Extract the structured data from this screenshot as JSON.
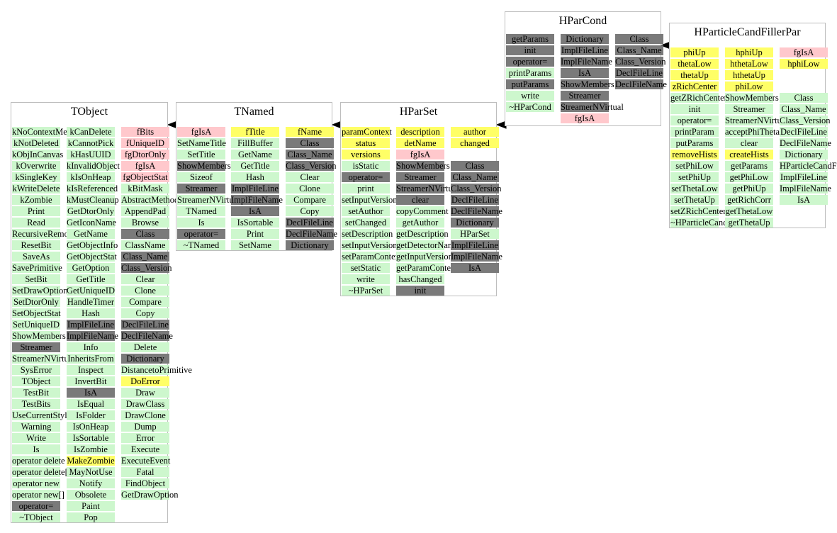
{
  "colors": {
    "method": "#cdf7cd",
    "inherited": "#7a7a7a",
    "data_member": "#ffff66",
    "static_member": "#ffc8cc",
    "border": "#bdbdbd"
  },
  "classes": {
    "TObject": {
      "title": "TObject",
      "columns": [
        [
          [
            "kNoContextMenu",
            "g"
          ],
          [
            "kNotDeleted",
            "g"
          ],
          [
            "kObjInCanvas",
            "g"
          ],
          [
            "kOverwrite",
            "g"
          ],
          [
            "kSingleKey",
            "g"
          ],
          [
            "kWriteDelete",
            "g"
          ],
          [
            "kZombie",
            "g"
          ],
          [
            "Print",
            "g"
          ],
          [
            "Read",
            "g"
          ],
          [
            "RecursiveRemove",
            "g"
          ],
          [
            "ResetBit",
            "g"
          ],
          [
            "SaveAs",
            "g"
          ],
          [
            "SavePrimitive",
            "g"
          ],
          [
            "SetBit",
            "g"
          ],
          [
            "SetDrawOption",
            "g"
          ],
          [
            "SetDtorOnly",
            "g"
          ],
          [
            "SetObjectStat",
            "g"
          ],
          [
            "SetUniqueID",
            "g"
          ],
          [
            "ShowMembers",
            "g"
          ],
          [
            "Streamer",
            "d"
          ],
          [
            "StreamerNVirtual",
            "g"
          ],
          [
            "SysError",
            "g"
          ],
          [
            "TObject",
            "g"
          ],
          [
            "TestBit",
            "g"
          ],
          [
            "TestBits",
            "g"
          ],
          [
            "UseCurrentStyle",
            "g"
          ],
          [
            "Warning",
            "g"
          ],
          [
            "Write",
            "g"
          ],
          [
            "Is",
            "g"
          ],
          [
            "operator delete",
            "g"
          ],
          [
            "operator delete[]",
            "g"
          ],
          [
            "operator new",
            "g"
          ],
          [
            "operator new[]",
            "g"
          ],
          [
            "operator=",
            "d"
          ],
          [
            "~TObject",
            "g"
          ]
        ],
        [
          [
            "kCanDelete",
            "g"
          ],
          [
            "kCannotPick",
            "g"
          ],
          [
            "kHasUUID",
            "g"
          ],
          [
            "kInvalidObject",
            "g"
          ],
          [
            "kIsOnHeap",
            "g"
          ],
          [
            "kIsReferenced",
            "g"
          ],
          [
            "kMustCleanup",
            "g"
          ],
          [
            "GetDtorOnly",
            "g"
          ],
          [
            "GetIconName",
            "g"
          ],
          [
            "GetName",
            "g"
          ],
          [
            "GetObjectInfo",
            "g"
          ],
          [
            "GetObjectStat",
            "g"
          ],
          [
            "GetOption",
            "g"
          ],
          [
            "GetTitle",
            "g"
          ],
          [
            "GetUniqueID",
            "g"
          ],
          [
            "HandleTimer",
            "g"
          ],
          [
            "Hash",
            "g"
          ],
          [
            "ImplFileLine",
            "d"
          ],
          [
            "ImplFileName",
            "d"
          ],
          [
            "Info",
            "g"
          ],
          [
            "InheritsFrom",
            "g"
          ],
          [
            "Inspect",
            "g"
          ],
          [
            "InvertBit",
            "g"
          ],
          [
            "IsA",
            "d"
          ],
          [
            "IsEqual",
            "g"
          ],
          [
            "IsFolder",
            "g"
          ],
          [
            "IsOnHeap",
            "g"
          ],
          [
            "IsSortable",
            "g"
          ],
          [
            "IsZombie",
            "g"
          ],
          [
            "MakeZombie",
            "y"
          ],
          [
            "MayNotUse",
            "g"
          ],
          [
            "Notify",
            "g"
          ],
          [
            "Obsolete",
            "g"
          ],
          [
            "Paint",
            "g"
          ],
          [
            "Pop",
            "g"
          ]
        ],
        [
          [
            "fBits",
            "p"
          ],
          [
            "fUniqueID",
            "p"
          ],
          [
            "fgDtorOnly",
            "p"
          ],
          [
            "fgIsA",
            "p"
          ],
          [
            "fgObjectStat",
            "p"
          ],
          [
            "kBitMask",
            "g"
          ],
          [
            "AbstractMethod",
            "g"
          ],
          [
            "AppendPad",
            "g"
          ],
          [
            "Browse",
            "g"
          ],
          [
            "Class",
            "d"
          ],
          [
            "ClassName",
            "g"
          ],
          [
            "Class_Name",
            "d"
          ],
          [
            "Class_Version",
            "d"
          ],
          [
            "Clear",
            "g"
          ],
          [
            "Clone",
            "g"
          ],
          [
            "Compare",
            "g"
          ],
          [
            "Copy",
            "g"
          ],
          [
            "DeclFileLine",
            "d"
          ],
          [
            "DeclFileName",
            "d"
          ],
          [
            "Delete",
            "g"
          ],
          [
            "Dictionary",
            "d"
          ],
          [
            "DistancetoPrimitive",
            "g"
          ],
          [
            "DoError",
            "y"
          ],
          [
            "Draw",
            "g"
          ],
          [
            "DrawClass",
            "g"
          ],
          [
            "DrawClone",
            "g"
          ],
          [
            "Dump",
            "g"
          ],
          [
            "Error",
            "g"
          ],
          [
            "Execute",
            "g"
          ],
          [
            "ExecuteEvent",
            "g"
          ],
          [
            "Fatal",
            "g"
          ],
          [
            "FindObject",
            "g"
          ],
          [
            "GetDrawOption",
            "g"
          ]
        ]
      ]
    },
    "TNamed": {
      "title": "TNamed",
      "columns": [
        [
          [
            "fgIsA",
            "p"
          ],
          [
            "SetNameTitle",
            "g"
          ],
          [
            "SetTitle",
            "g"
          ],
          [
            "ShowMembers",
            "d"
          ],
          [
            "Sizeof",
            "g"
          ],
          [
            "Streamer",
            "d"
          ],
          [
            "StreamerNVirtual",
            "g"
          ],
          [
            "TNamed",
            "g"
          ],
          [
            "Is",
            "g"
          ],
          [
            "operator=",
            "d"
          ],
          [
            "~TNamed",
            "g"
          ]
        ],
        [
          [
            "fTitle",
            "y"
          ],
          [
            "FillBuffer",
            "g"
          ],
          [
            "GetName",
            "g"
          ],
          [
            "GetTitle",
            "g"
          ],
          [
            "Hash",
            "g"
          ],
          [
            "ImplFileLine",
            "d"
          ],
          [
            "ImplFileName",
            "d"
          ],
          [
            "IsA",
            "d"
          ],
          [
            "IsSortable",
            "g"
          ],
          [
            "Print",
            "g"
          ],
          [
            "SetName",
            "g"
          ]
        ],
        [
          [
            "fName",
            "y"
          ],
          [
            "Class",
            "d"
          ],
          [
            "Class_Name",
            "d"
          ],
          [
            "Class_Version",
            "d"
          ],
          [
            "Clear",
            "g"
          ],
          [
            "Clone",
            "g"
          ],
          [
            "Compare",
            "g"
          ],
          [
            "Copy",
            "g"
          ],
          [
            "DeclFileLine",
            "d"
          ],
          [
            "DeclFileName",
            "d"
          ],
          [
            "Dictionary",
            "d"
          ]
        ]
      ]
    },
    "HParSet": {
      "title": "HParSet",
      "columns": [
        [
          [
            "paramContext",
            "y"
          ],
          [
            "status",
            "y"
          ],
          [
            "versions",
            "y"
          ],
          [
            "isStatic",
            "g"
          ],
          [
            "operator=",
            "d"
          ],
          [
            "print",
            "g"
          ],
          [
            "setInputVersions",
            "g"
          ],
          [
            "setAuthor",
            "g"
          ],
          [
            "setChanged",
            "g"
          ],
          [
            "setDescription",
            "g"
          ],
          [
            "setInputVersion",
            "g"
          ],
          [
            "setParamContext",
            "g"
          ],
          [
            "setStatic",
            "g"
          ],
          [
            "write",
            "g"
          ],
          [
            "~HParSet",
            "g"
          ]
        ],
        [
          [
            "description",
            "y"
          ],
          [
            "detName",
            "y"
          ],
          [
            "fgIsA",
            "p"
          ],
          [
            "ShowMembers",
            "d"
          ],
          [
            "Streamer",
            "d"
          ],
          [
            "StreamerNVirtual",
            "d"
          ],
          [
            "clear",
            "d"
          ],
          [
            "copyComment",
            "g"
          ],
          [
            "getAuthor",
            "g"
          ],
          [
            "getDescription",
            "g"
          ],
          [
            "getDetectorName",
            "g"
          ],
          [
            "getInputVersion",
            "g"
          ],
          [
            "getParamContext",
            "g"
          ],
          [
            "hasChanged",
            "g"
          ],
          [
            "init",
            "d"
          ]
        ],
        [
          [
            "author",
            "y"
          ],
          [
            "changed",
            "y"
          ],
          [
            "",
            ""
          ],
          [
            "Class",
            "d"
          ],
          [
            "Class_Name",
            "d"
          ],
          [
            "Class_Version",
            "d"
          ],
          [
            "DeclFileLine",
            "d"
          ],
          [
            "DeclFileName",
            "d"
          ],
          [
            "Dictionary",
            "d"
          ],
          [
            "HParSet",
            "g"
          ],
          [
            "ImplFileLine",
            "d"
          ],
          [
            "ImplFileName",
            "d"
          ],
          [
            "IsA",
            "d"
          ]
        ]
      ]
    },
    "HParCond": {
      "title": "HParCond",
      "columns": [
        [
          [
            "getParams",
            "d"
          ],
          [
            "init",
            "d"
          ],
          [
            "operator=",
            "d"
          ],
          [
            "printParams",
            "g"
          ],
          [
            "putParams",
            "d"
          ],
          [
            "write",
            "g"
          ],
          [
            "~HParCond",
            "g"
          ]
        ],
        [
          [
            "Dictionary",
            "d"
          ],
          [
            "ImplFileLine",
            "d"
          ],
          [
            "ImplFileName",
            "d"
          ],
          [
            "IsA",
            "d"
          ],
          [
            "ShowMembers",
            "d"
          ],
          [
            "Streamer",
            "d"
          ],
          [
            "StreamerNVirtual",
            "d"
          ],
          [
            "fgIsA",
            "p"
          ]
        ],
        [
          [
            "Class",
            "d"
          ],
          [
            "Class_Name",
            "d"
          ],
          [
            "Class_Version",
            "d"
          ],
          [
            "DeclFileLine",
            "d"
          ],
          [
            "DeclFileName",
            "d"
          ]
        ]
      ]
    },
    "HParticleCandFillerPar": {
      "title": "HParticleCandFillerPar",
      "columns": [
        [
          [
            "phiUp",
            "y"
          ],
          [
            "thetaLow",
            "y"
          ],
          [
            "thetaUp",
            "y"
          ],
          [
            "zRichCenter",
            "y"
          ],
          [
            "getZRichCenter",
            "g"
          ],
          [
            "init",
            "g"
          ],
          [
            "operator=",
            "g"
          ],
          [
            "printParam",
            "g"
          ],
          [
            "putParams",
            "g"
          ],
          [
            "removeHists",
            "y"
          ],
          [
            "setPhiLow",
            "g"
          ],
          [
            "setPhiUp",
            "g"
          ],
          [
            "setThetaLow",
            "g"
          ],
          [
            "setThetaUp",
            "g"
          ],
          [
            "setZRichCenter",
            "g"
          ],
          [
            "~HParticleCandFillerPar",
            "g"
          ]
        ],
        [
          [
            "hphiUp",
            "y"
          ],
          [
            "hthetaLow",
            "y"
          ],
          [
            "hthetaUp",
            "y"
          ],
          [
            "phiLow",
            "y"
          ],
          [
            "ShowMembers",
            "g"
          ],
          [
            "Streamer",
            "g"
          ],
          [
            "StreamerNVirtual",
            "g"
          ],
          [
            "acceptPhiTheta",
            "g"
          ],
          [
            "clear",
            "g"
          ],
          [
            "createHists",
            "y"
          ],
          [
            "getParams",
            "g"
          ],
          [
            "getPhiLow",
            "g"
          ],
          [
            "getPhiUp",
            "g"
          ],
          [
            "getRichCorr",
            "g"
          ],
          [
            "getThetaLow",
            "g"
          ],
          [
            "getThetaUp",
            "g"
          ]
        ],
        [
          [
            "fgIsA",
            "p"
          ],
          [
            "hphiLow",
            "y"
          ],
          [
            "",
            ""
          ],
          [
            "",
            ""
          ],
          [
            "Class",
            "g"
          ],
          [
            "Class_Name",
            "g"
          ],
          [
            "Class_Version",
            "g"
          ],
          [
            "DeclFileLine",
            "g"
          ],
          [
            "DeclFileName",
            "g"
          ],
          [
            "Dictionary",
            "g"
          ],
          [
            "HParticleCandFillerPar",
            "g"
          ],
          [
            "ImplFileLine",
            "g"
          ],
          [
            "ImplFileName",
            "g"
          ],
          [
            "IsA",
            "g"
          ]
        ]
      ]
    }
  }
}
